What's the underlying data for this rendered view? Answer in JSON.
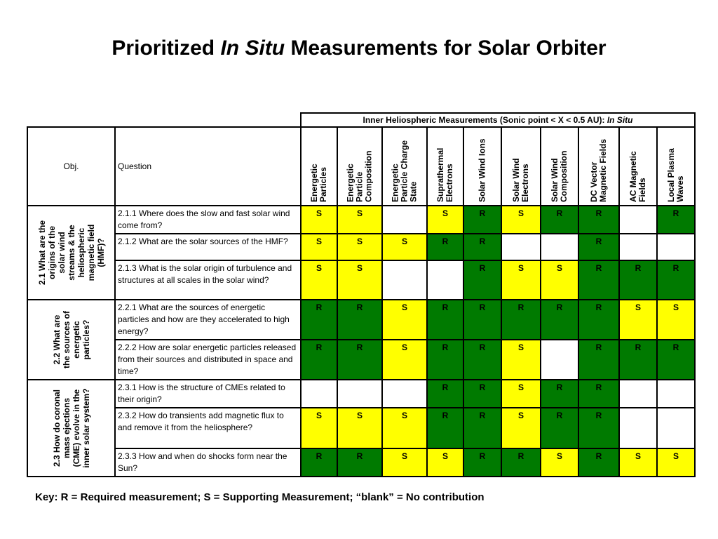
{
  "title": {
    "pre": "Prioritized ",
    "italic": "In Situ",
    "post": " Measurements for Solar Orbiter"
  },
  "header": {
    "inner": "Inner Heliospheric Measurements (Sonic point < X < 0.5 AU):  ",
    "inner_italic": "In Situ",
    "obj_label": "Obj.",
    "question_label": "Question",
    "columns": [
      "Energetic\nParticles",
      "Energetic\nParticle\nComposition",
      "Energetic\nParticle Charge\nState",
      "Suprathermal\nElectrons",
      "Solar Wind Ions",
      "Solar Wind\nElectrons",
      "Solar Wind\nComposition",
      "DC Vector\nMagnetic Fields",
      "AC Magnetic\nFields",
      "Local Plasma\nWaves"
    ]
  },
  "groups": [
    {
      "obj": "2.1 What are the\norigins of the\nsolar wind\nstreams & the\nheliospheric\nmagnetic field\n(HMF)?",
      "rows": [
        {
          "q": "2.1.1 Where does the slow and fast solar wind come from?",
          "vals": [
            "S",
            "S",
            "",
            "S",
            "R",
            "S",
            "R",
            "R",
            "",
            "R"
          ]
        },
        {
          "q": "2.1.2 What are the solar sources of the HMF?",
          "vals": [
            "S",
            "S",
            "S",
            "R",
            "R",
            "",
            "",
            "R",
            "",
            ""
          ]
        },
        {
          "q": "2.1.3 What is the solar origin of turbulence and structures at all scales in the solar wind?",
          "vals": [
            "S",
            "S",
            "",
            "",
            "R",
            "S",
            "S",
            "R",
            "R",
            "R"
          ]
        }
      ]
    },
    {
      "obj": "2.2 What are\nthe sources of\nenergetic\nparticles?",
      "rows": [
        {
          "q": "2.2.1 What are the sources of energetic particles and how are they accelerated to high energy?",
          "vals": [
            "R",
            "R",
            "S",
            "R",
            "R",
            "R",
            "R",
            "R",
            "S",
            "S"
          ]
        },
        {
          "q": "2.2.2 How are solar energetic particles released from their sources and distributed in space and time?",
          "vals": [
            "R",
            "R",
            "S",
            "R",
            "R",
            "S",
            "",
            "R",
            "R",
            "R"
          ]
        }
      ]
    },
    {
      "obj": "2.3 How do coronal\nmass ejections\n(CME) evolve in the\ninner solar system?",
      "rows": [
        {
          "q": "2.3.1 How is the structure of CMEs related to their origin?",
          "vals": [
            "",
            "",
            "",
            "R",
            "R",
            "S",
            "R",
            "R",
            "",
            ""
          ]
        },
        {
          "q": "2.3.2 How do transients add magnetic flux to and remove it from the heliosphere?",
          "vals": [
            "S",
            "S",
            "S",
            "R",
            "R",
            "S",
            "R",
            "R",
            "",
            ""
          ]
        },
        {
          "q": "2.3.3 How and when do shocks form near the Sun?",
          "vals": [
            "R",
            "R",
            "S",
            "S",
            "R",
            "R",
            "S",
            "R",
            "S",
            "S"
          ]
        }
      ]
    }
  ],
  "key": "Key:  R = Required measurement; S = Supporting Measurement; “blank” = No contribution",
  "colors": {
    "required": "#007a00",
    "supporting": "#ffff00",
    "required_text": "#ffff00"
  }
}
